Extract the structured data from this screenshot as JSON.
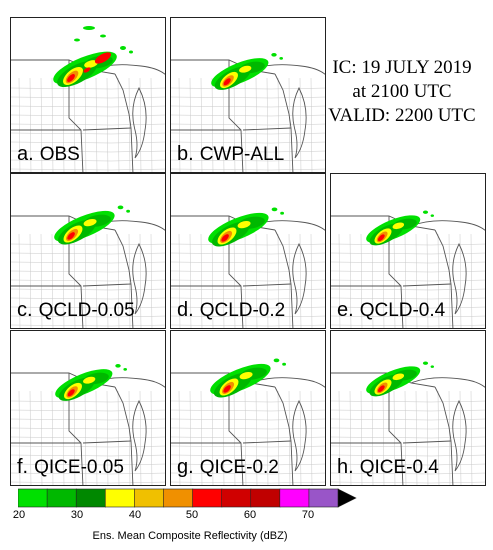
{
  "caption": {
    "line1": "IC: 19 JULY 2019",
    "line2": "at 2100 UTC",
    "line3": "VALID: 2200 UTC"
  },
  "panels": [
    {
      "letter": "a.",
      "name": "OBS"
    },
    {
      "letter": "b.",
      "name": "CWP-ALL"
    },
    {
      "letter": "c.",
      "name": "QCLD-0.05"
    },
    {
      "letter": "d.",
      "name": "QCLD-0.2"
    },
    {
      "letter": "e.",
      "name": "QCLD-0.4"
    },
    {
      "letter": "f.",
      "name": "QICE-0.05"
    },
    {
      "letter": "g.",
      "name": "QICE-0.2"
    },
    {
      "letter": "h.",
      "name": "QICE-0.4"
    }
  ],
  "colorbar": {
    "title": "Ens. Mean Composite Reflectivity (dBZ)",
    "ticks": [
      "20",
      "30",
      "40",
      "50",
      "60",
      "70"
    ],
    "colors": [
      "#00e000",
      "#00b800",
      "#008800",
      "#ffff00",
      "#f0c000",
      "#f09000",
      "#ff0000",
      "#d00000",
      "#c00000",
      "#ff00ff",
      "#9955c8"
    ],
    "extend_color": "#000000"
  }
}
